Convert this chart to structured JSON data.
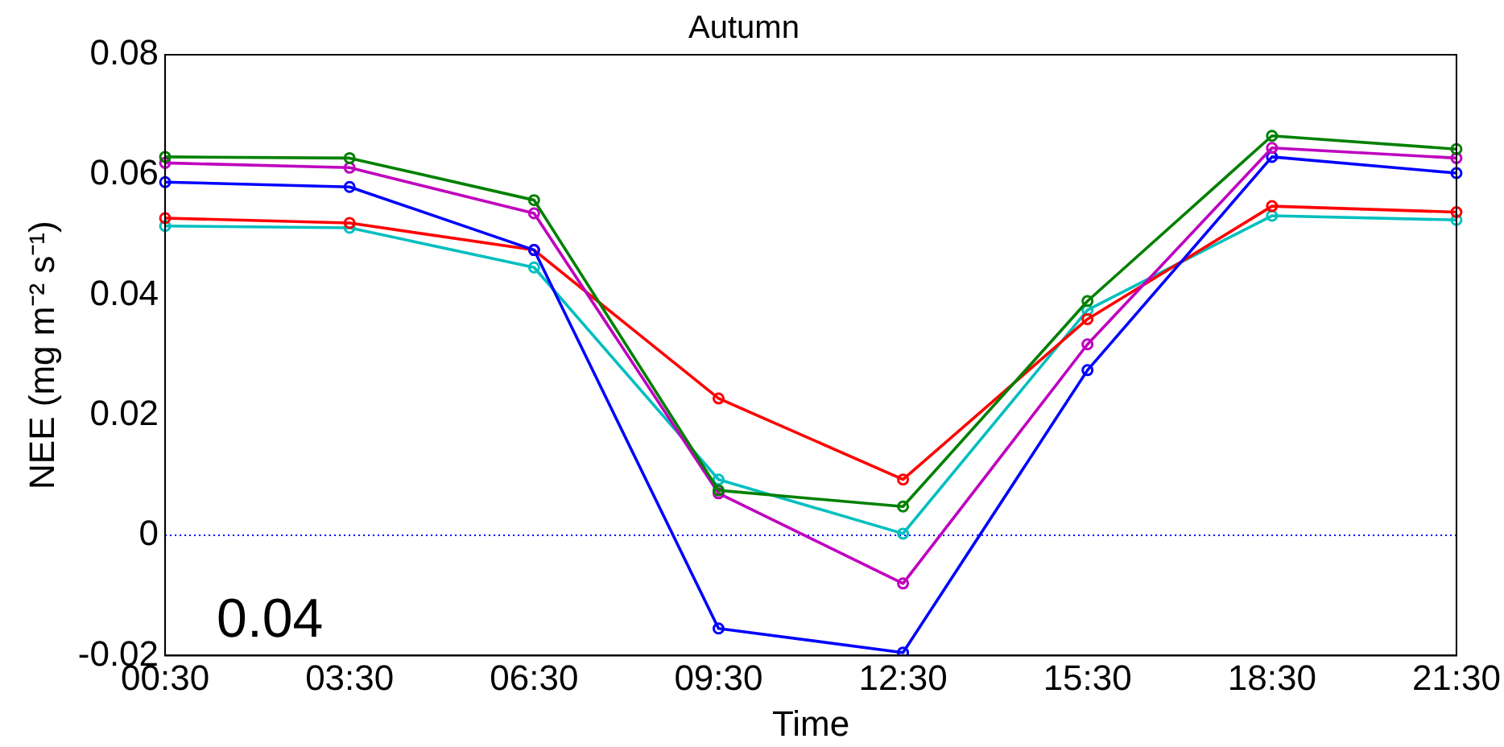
{
  "chart_data": {
    "type": "line",
    "title": "Autumn",
    "xlabel": "Time",
    "ylabel": "NEE (mg m⁻² s⁻¹)",
    "categories": [
      "00:30",
      "03:30",
      "06:30",
      "09:30",
      "12:30",
      "15:30",
      "18:30",
      "21:30"
    ],
    "series": [
      {
        "color": "#008000",
        "values": [
          0.063,
          0.0628,
          0.0558,
          0.0075,
          0.0048,
          0.039,
          0.0665,
          0.0643
        ]
      },
      {
        "color": "#bf00bf",
        "values": [
          0.062,
          0.0612,
          0.0536,
          0.007,
          -0.008,
          0.0318,
          0.0645,
          0.0628
        ]
      },
      {
        "color": "#0000ff",
        "values": [
          0.0588,
          0.058,
          0.0475,
          -0.0155,
          -0.0195,
          0.0275,
          0.063,
          0.0603
        ]
      },
      {
        "color": "#ff0000",
        "values": [
          0.0528,
          0.052,
          0.0475,
          0.0228,
          0.0093,
          0.036,
          0.0548,
          0.0538
        ]
      },
      {
        "color": "#00bfbf",
        "values": [
          0.0515,
          0.0512,
          0.0446,
          0.0093,
          0.0003,
          0.0375,
          0.0532,
          0.0525
        ]
      }
    ],
    "ylim": [
      -0.02,
      0.08
    ],
    "yticks": [
      -0.02,
      0,
      0.02,
      0.04,
      0.06,
      0.08
    ],
    "grid": false,
    "legend": false,
    "marker": "circle",
    "line_style": "solid",
    "ref_lines": [
      {
        "axis": "y",
        "value": 0,
        "color": "#0000ff",
        "line_style": "dotted"
      }
    ],
    "annotations": [
      "0.04"
    ]
  }
}
